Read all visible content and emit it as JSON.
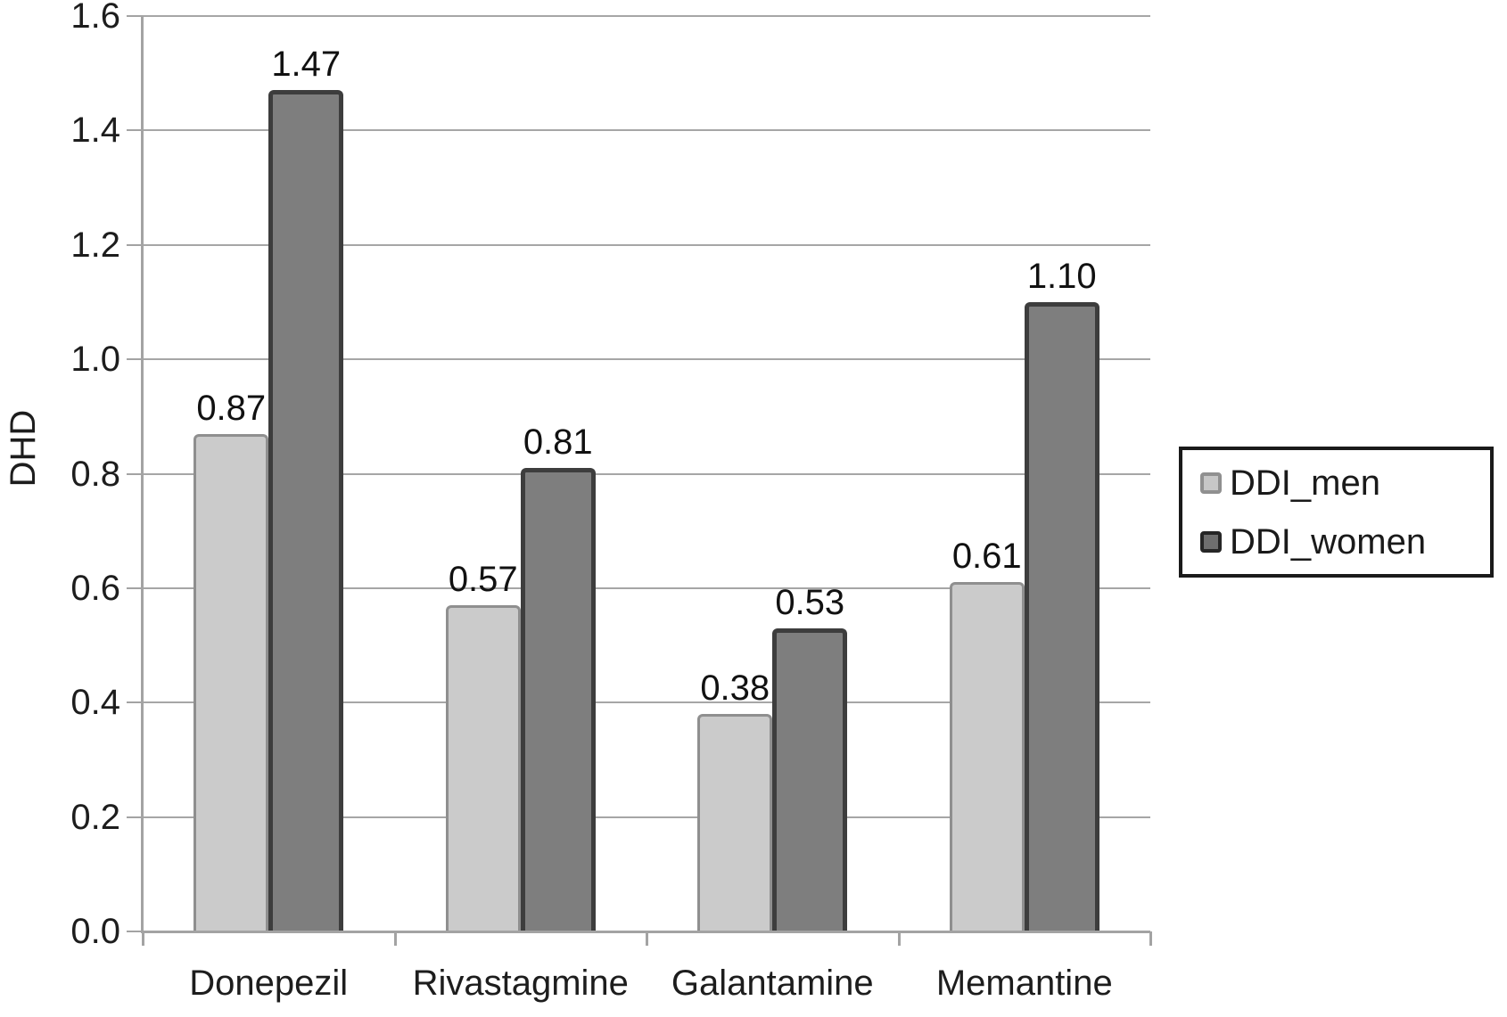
{
  "chart_data": {
    "type": "bar",
    "title": "",
    "categories": [
      "Donepezil",
      "Rivastagmine",
      "Galantamine",
      "Memantine"
    ],
    "series": [
      {
        "name": "DDI_men",
        "values": [
          0.87,
          0.57,
          0.38,
          0.61
        ],
        "labels": [
          "0.87",
          "0.57",
          "0.38",
          "0.61"
        ],
        "fill": "#cbcbcb",
        "border": "#8f8f8f"
      },
      {
        "name": "DDI_women",
        "values": [
          1.47,
          0.81,
          0.53,
          1.1
        ],
        "labels": [
          "1.47",
          "0.81",
          "0.53",
          "1.10"
        ],
        "fill": "#7e7e7e",
        "border": "#3d3d3d"
      }
    ],
    "xlabel": "",
    "ylabel": "DHD",
    "ylim": [
      0.0,
      1.6
    ],
    "ytick_labels": [
      "0.0",
      "0.2",
      "0.4",
      "0.6",
      "0.8",
      "1.0",
      "1.2",
      "1.4",
      "1.6"
    ],
    "grid": true,
    "legend_position": "right",
    "bar_value_labels_shown": true
  },
  "legend": {
    "items": [
      {
        "label": "DDI_men"
      },
      {
        "label": "DDI_women"
      }
    ]
  },
  "colors": {
    "grid": "#a6a6a6",
    "axis": "#a3a3a3",
    "text": "#1d1d1d",
    "background": "#ffffff",
    "legend_border": "#1a1a1a"
  }
}
